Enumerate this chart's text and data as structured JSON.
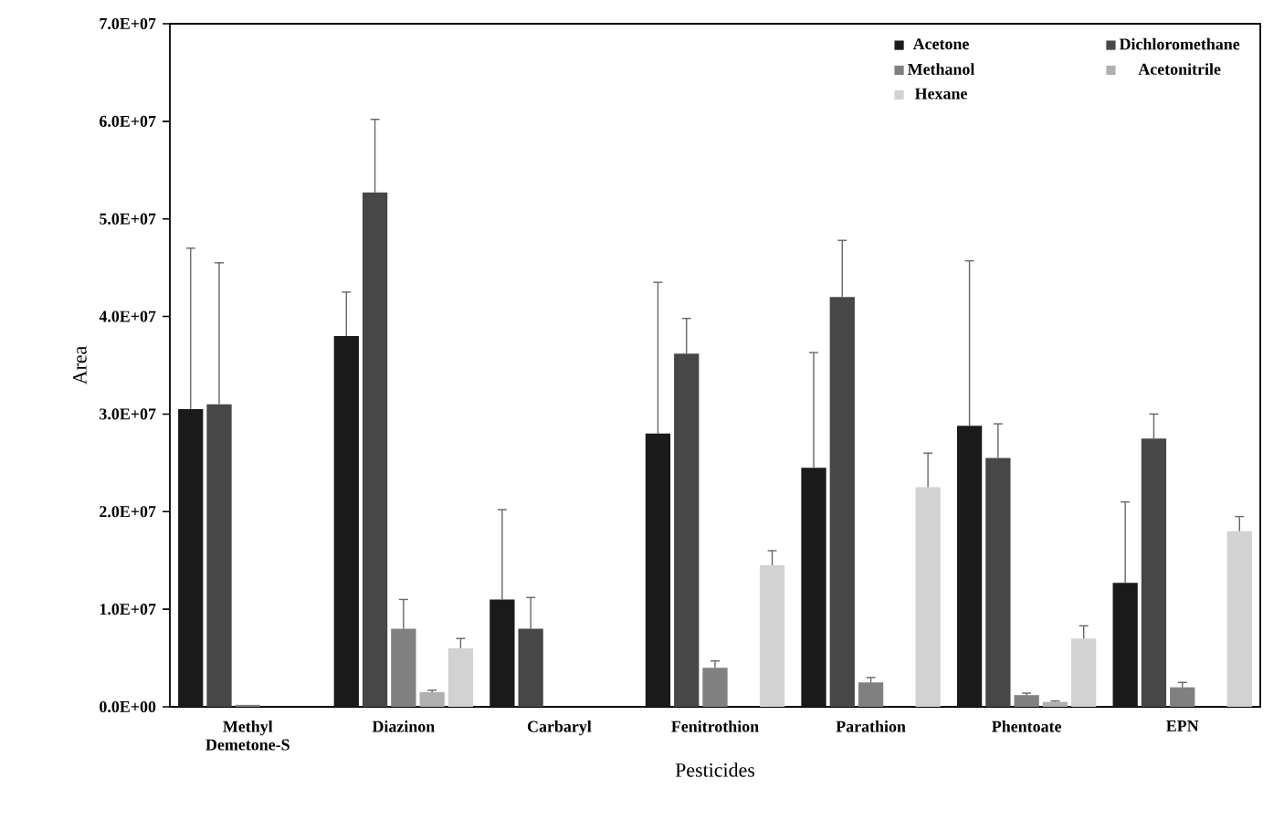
{
  "chart_data": {
    "type": "bar",
    "xlabel": "Pesticides",
    "ylabel": "Area",
    "categories": [
      "Methyl Demetone-S",
      "Diazinon",
      "Carbaryl",
      "Fenitrothion",
      "Parathion",
      "Phentoate",
      "EPN"
    ],
    "series": [
      {
        "name": "Acetone",
        "color": "#1a1a1a",
        "values": [
          30500000,
          38000000,
          11000000,
          28000000,
          24500000,
          28800000,
          12700000
        ],
        "errors": [
          16500000,
          4500000,
          9200000,
          15500000,
          11800000,
          16900000,
          8300000
        ]
      },
      {
        "name": "Dichloromethane",
        "color": "#474747",
        "values": [
          31000000,
          52700000,
          8000000,
          36200000,
          42000000,
          25500000,
          27500000
        ],
        "errors": [
          14500000,
          7500000,
          3200000,
          3600000,
          5800000,
          3500000,
          2500000
        ]
      },
      {
        "name": "Methanol",
        "color": "#808080",
        "values": [
          200000,
          8000000,
          0,
          4000000,
          2500000,
          1200000,
          2000000
        ],
        "errors": [
          null,
          3000000,
          null,
          700000,
          500000,
          200000,
          500000
        ]
      },
      {
        "name": "Acetonitrile",
        "color": "#b0b0b0",
        "values": [
          0,
          1500000,
          0,
          null,
          null,
          500000,
          0
        ],
        "errors": [
          null,
          200000,
          null,
          null,
          null,
          100000,
          null
        ]
      },
      {
        "name": "Hexane",
        "color": "#d2d2d2",
        "values": [
          0,
          6000000,
          0,
          14500000,
          22500000,
          7000000,
          18000000
        ],
        "errors": [
          null,
          1000000,
          null,
          1500000,
          3500000,
          1300000,
          1500000
        ]
      }
    ],
    "ylim": [
      0,
      70000000
    ],
    "yticks": [
      {
        "value": 0,
        "label": "0.0E+00"
      },
      {
        "value": 10000000,
        "label": "1.0E+07"
      },
      {
        "value": 20000000,
        "label": "2.0E+07"
      },
      {
        "value": 30000000,
        "label": "3.0E+07"
      },
      {
        "value": 40000000,
        "label": "4.0E+07"
      },
      {
        "value": 50000000,
        "label": "5.0E+07"
      },
      {
        "value": 60000000,
        "label": "6.0E+07"
      },
      {
        "value": 70000000,
        "label": "7.0E+07"
      }
    ],
    "legend": "top right",
    "grid": false
  }
}
